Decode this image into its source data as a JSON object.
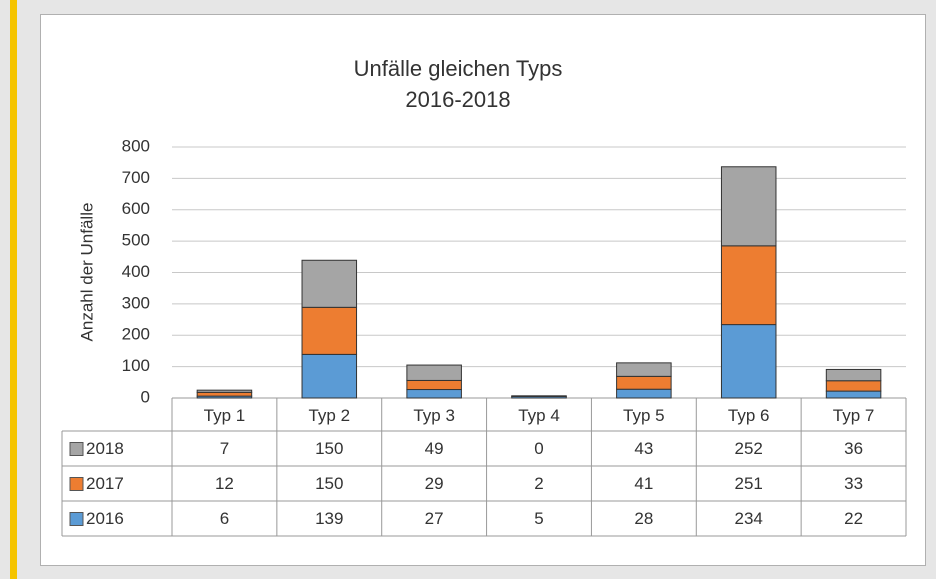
{
  "chart_data": {
    "type": "stacked_bar",
    "title": "Unfälle gleichen Typs",
    "subtitle": "2016-2018",
    "y_label": "Anzahl der Unfälle",
    "categories": [
      "Typ 1",
      "Typ 2",
      "Typ 3",
      "Typ 4",
      "Typ 5",
      "Typ 6",
      "Typ 7"
    ],
    "series": [
      {
        "name": "2016",
        "color": "#5b9bd5",
        "values": [
          6,
          139,
          27,
          5,
          28,
          234,
          22
        ]
      },
      {
        "name": "2017",
        "color": "#ed7d31",
        "values": [
          12,
          150,
          29,
          2,
          41,
          251,
          33
        ]
      },
      {
        "name": "2018",
        "color": "#a5a5a5",
        "values": [
          7,
          150,
          49,
          0,
          43,
          252,
          36
        ]
      }
    ],
    "ylim": [
      0,
      800
    ],
    "yticks": [
      0,
      100,
      200,
      300,
      400,
      500,
      600,
      700,
      800
    ],
    "grid": true
  }
}
